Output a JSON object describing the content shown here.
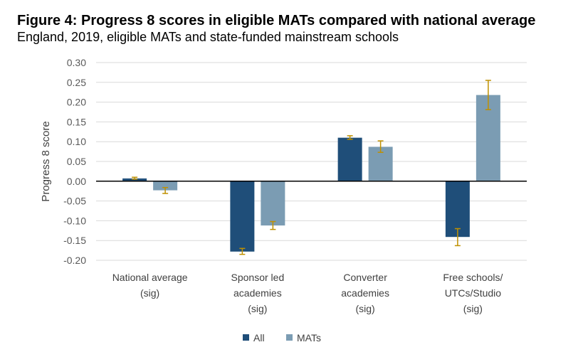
{
  "header": {
    "title": "Figure 4: Progress 8 scores in eligible MATs compared with national average",
    "subtitle": "England, 2019, eligible MATs and state-funded mainstream schools"
  },
  "chart_data": {
    "type": "bar",
    "ylabel": "Progress 8 score",
    "ylim": [
      -0.2,
      0.3
    ],
    "ytick_step": 0.05,
    "yticks": [
      "0.30",
      "0.25",
      "0.20",
      "0.15",
      "0.10",
      "0.05",
      "0.00",
      "-0.05",
      "-0.10",
      "-0.15",
      "-0.20"
    ],
    "grid": true,
    "categories": [
      [
        "National average",
        "(sig)"
      ],
      [
        "Sponsor led",
        "academies",
        "(sig)"
      ],
      [
        "Converter",
        "academies",
        "(sig)"
      ],
      [
        "Free schools/",
        "UTCs/Studio",
        "(sig)"
      ]
    ],
    "series": [
      {
        "name": "All",
        "color": "#1f4e79",
        "values": [
          0.007,
          -0.178,
          0.11,
          -0.141
        ],
        "error_low": [
          0.005,
          -0.185,
          0.106,
          -0.163
        ],
        "error_high": [
          0.01,
          -0.17,
          0.115,
          -0.12
        ]
      },
      {
        "name": "MATs",
        "color": "#7b9cb3",
        "values": [
          -0.023,
          -0.112,
          0.087,
          0.218
        ],
        "error_low": [
          -0.031,
          -0.122,
          0.073,
          0.181
        ],
        "error_high": [
          -0.016,
          -0.102,
          0.102,
          0.255
        ]
      }
    ],
    "error_bar_color": "#bf9000",
    "legend_position": "bottom"
  }
}
